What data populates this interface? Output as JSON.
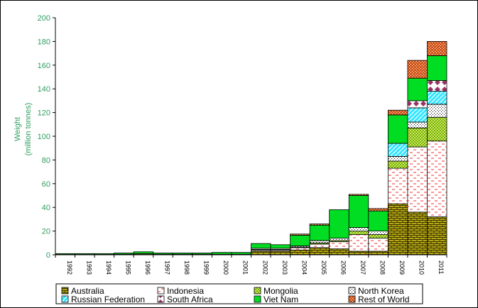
{
  "chart_data": {
    "type": "bar",
    "stacked": true,
    "title": "",
    "ylabel_line1": "Weight",
    "ylabel_line2": "(million tonnes)",
    "xlabel": "",
    "ylim": [
      0,
      200
    ],
    "yticks": [
      0,
      20,
      40,
      60,
      80,
      100,
      120,
      140,
      160,
      180,
      200
    ],
    "grid": false,
    "legend_position": "bottom",
    "categories": [
      "1992",
      "1993",
      "1994",
      "1995",
      "1996",
      "1997",
      "1998",
      "1999",
      "2000",
      "2001",
      "2002",
      "2003",
      "2004",
      "2005",
      "2006",
      "2007",
      "2008",
      "2009",
      "2010",
      "2011"
    ],
    "series": [
      {
        "name": "Australia",
        "color": "#b5a814",
        "pattern": "brick",
        "values": [
          0.3,
          0.3,
          0.3,
          0.5,
          1.0,
          0.5,
          0.5,
          0.5,
          0.5,
          0.5,
          3,
          3,
          4,
          6,
          5,
          3,
          3,
          43,
          36,
          32
        ]
      },
      {
        "name": "Indonesia",
        "color": "#ee3333",
        "pattern": "dash",
        "values": [
          0,
          0,
          0,
          0,
          0,
          0,
          0,
          0,
          0,
          0,
          1,
          1,
          2,
          3,
          6,
          14,
          11,
          30,
          55,
          64
        ]
      },
      {
        "name": "Mongolia",
        "color": "#99cc00",
        "pattern": "checker",
        "values": [
          0,
          0,
          0,
          0,
          0,
          0,
          0,
          0,
          0,
          0,
          0.5,
          0.5,
          0.5,
          1,
          1,
          3,
          3,
          6,
          16,
          20
        ]
      },
      {
        "name": "North Korea",
        "color": "#000000",
        "pattern": "dots",
        "values": [
          0,
          0,
          0,
          0,
          0,
          0,
          0,
          0,
          0,
          0,
          1,
          1,
          1,
          2,
          2,
          3,
          3,
          4,
          5,
          11
        ]
      },
      {
        "name": "Russian Federation",
        "color": "#33e6ff",
        "pattern": "stripes",
        "values": [
          0,
          0,
          0,
          0,
          0,
          0,
          0,
          0,
          0,
          0,
          0,
          0,
          0,
          0,
          0,
          0,
          0,
          11,
          12,
          11
        ]
      },
      {
        "name": "South Africa",
        "color": "#993366",
        "pattern": "diamond",
        "values": [
          0,
          0,
          0,
          0,
          0,
          0,
          0,
          0,
          0,
          0,
          0,
          0,
          0,
          0,
          0,
          0,
          0,
          0,
          6,
          9
        ]
      },
      {
        "name": "Viet Nam",
        "color": "#00dd22",
        "pattern": "solid",
        "values": [
          0.7,
          0.7,
          0.7,
          1.0,
          1.5,
          1.0,
          1.0,
          1.0,
          1.5,
          1.5,
          4,
          3,
          9,
          13,
          24,
          27,
          17,
          24,
          19,
          21
        ]
      },
      {
        "name": "Rest of World",
        "color": "#d2561a",
        "pattern": "crosshatch",
        "values": [
          0,
          0,
          0,
          0,
          0,
          0,
          0,
          0,
          0,
          0,
          0,
          0,
          1,
          1,
          0,
          1,
          2,
          4,
          15,
          12
        ]
      }
    ]
  }
}
